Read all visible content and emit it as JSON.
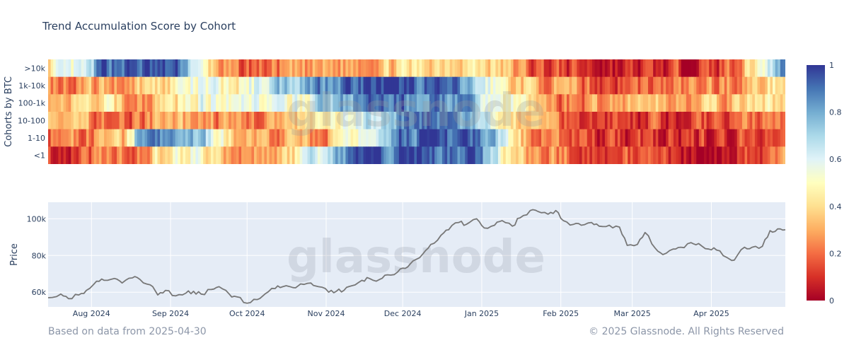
{
  "chart_data": [
    {
      "type": "heatmap",
      "title": "Trend Accumulation Score by Cohort",
      "ylabel": "Cohorts by BTC",
      "rows": [
        ">10k",
        "1k-10k",
        "100-1k",
        "10-100",
        "1-10",
        "<1"
      ],
      "x_range": [
        "2024-07-15",
        "2025-04-30"
      ],
      "colorscale": [
        "#a50026",
        "#d73027",
        "#f46d43",
        "#fdae61",
        "#fee090",
        "#ffffbf",
        "#e0f3f8",
        "#abd9e9",
        "#74add1",
        "#4575b4",
        "#313695"
      ],
      "colorbar": {
        "min": 0,
        "max": 1,
        "ticks": [
          "1",
          "0.8",
          "0.6",
          "0.4",
          "0.2",
          "0"
        ]
      },
      "row_trends": [
        [
          [
            0,
            0.45
          ],
          [
            0.05,
            0.55
          ],
          [
            0.07,
            0.95
          ],
          [
            0.18,
            0.9
          ],
          [
            0.2,
            0.5
          ],
          [
            0.25,
            0.15
          ],
          [
            0.45,
            0.35
          ],
          [
            0.55,
            0.45
          ],
          [
            0.6,
            0.4
          ],
          [
            0.66,
            0.15
          ],
          [
            0.78,
            0.05
          ],
          [
            0.9,
            0.1
          ],
          [
            0.94,
            0.3
          ],
          [
            0.96,
            0.5
          ],
          [
            0.985,
            0.7
          ],
          [
            1,
            0.95
          ]
        ],
        [
          [
            0,
            0.25
          ],
          [
            0.1,
            0.3
          ],
          [
            0.2,
            0.55
          ],
          [
            0.25,
            0.45
          ],
          [
            0.3,
            0.7
          ],
          [
            0.34,
            0.8
          ],
          [
            0.4,
            0.95
          ],
          [
            0.5,
            0.95
          ],
          [
            0.55,
            0.85
          ],
          [
            0.6,
            0.55
          ],
          [
            0.64,
            0.35
          ],
          [
            0.75,
            0.15
          ],
          [
            0.85,
            0.2
          ],
          [
            0.95,
            0.3
          ],
          [
            1,
            0.5
          ]
        ],
        [
          [
            0,
            0.3
          ],
          [
            0.08,
            0.4
          ],
          [
            0.12,
            0.25
          ],
          [
            0.2,
            0.55
          ],
          [
            0.27,
            0.6
          ],
          [
            0.32,
            0.45
          ],
          [
            0.38,
            0.75
          ],
          [
            0.45,
            0.9
          ],
          [
            0.55,
            0.85
          ],
          [
            0.6,
            0.6
          ],
          [
            0.65,
            0.4
          ],
          [
            0.7,
            0.2
          ],
          [
            0.8,
            0.35
          ],
          [
            0.9,
            0.3
          ],
          [
            1,
            0.45
          ]
        ],
        [
          [
            0,
            0.3
          ],
          [
            0.1,
            0.2
          ],
          [
            0.2,
            0.3
          ],
          [
            0.26,
            0.2
          ],
          [
            0.35,
            0.35
          ],
          [
            0.4,
            0.5
          ],
          [
            0.45,
            0.7
          ],
          [
            0.5,
            0.95
          ],
          [
            0.55,
            0.85
          ],
          [
            0.6,
            0.55
          ],
          [
            0.65,
            0.35
          ],
          [
            0.72,
            0.15
          ],
          [
            0.85,
            0.1
          ],
          [
            1,
            0.25
          ]
        ],
        [
          [
            0,
            0.2
          ],
          [
            0.1,
            0.3
          ],
          [
            0.12,
            0.85
          ],
          [
            0.2,
            0.75
          ],
          [
            0.25,
            0.35
          ],
          [
            0.3,
            0.25
          ],
          [
            0.38,
            0.3
          ],
          [
            0.43,
            0.55
          ],
          [
            0.47,
            0.95
          ],
          [
            0.58,
            0.9
          ],
          [
            0.62,
            0.55
          ],
          [
            0.65,
            0.25
          ],
          [
            0.75,
            0.1
          ],
          [
            0.9,
            0.1
          ],
          [
            1,
            0.2
          ]
        ],
        [
          [
            0,
            0.1
          ],
          [
            0.12,
            0.25
          ],
          [
            0.15,
            0.45
          ],
          [
            0.2,
            0.55
          ],
          [
            0.26,
            0.25
          ],
          [
            0.33,
            0.4
          ],
          [
            0.38,
            0.75
          ],
          [
            0.42,
            0.95
          ],
          [
            0.58,
            0.9
          ],
          [
            0.6,
            0.65
          ],
          [
            0.64,
            0.3
          ],
          [
            0.75,
            0.15
          ],
          [
            0.9,
            0.05
          ],
          [
            1,
            0.2
          ]
        ]
      ]
    },
    {
      "type": "line",
      "ylabel": "Price",
      "x_range": [
        "2024-07-15",
        "2025-04-30"
      ],
      "x_ticks": [
        {
          "label": "Aug 2024",
          "date": "2024-08-01"
        },
        {
          "label": "Sep 2024",
          "date": "2024-09-01"
        },
        {
          "label": "Oct 2024",
          "date": "2024-10-01"
        },
        {
          "label": "Nov 2024",
          "date": "2024-11-01"
        },
        {
          "label": "Dec 2024",
          "date": "2024-12-01"
        },
        {
          "label": "Jan 2025",
          "date": "2025-01-01"
        },
        {
          "label": "Feb 2025",
          "date": "2025-02-01"
        },
        {
          "label": "Mar 2025",
          "date": "2025-03-01"
        },
        {
          "label": "Apr 2025",
          "date": "2025-04-01"
        }
      ],
      "ylim": [
        52000,
        109000
      ],
      "y_ticks": [
        {
          "label": "100k",
          "value": 100000
        },
        {
          "label": "80k",
          "value": 80000
        },
        {
          "label": "60k",
          "value": 60000
        }
      ],
      "series": [
        {
          "name": "Price",
          "values": [
            [
              "2024-07-15",
              57000
            ],
            [
              "2024-07-20",
              59000
            ],
            [
              "2024-07-23",
              56500
            ],
            [
              "2024-07-27",
              58500
            ],
            [
              "2024-07-30",
              61000
            ],
            [
              "2024-08-03",
              66000
            ],
            [
              "2024-08-06",
              66500
            ],
            [
              "2024-08-10",
              67500
            ],
            [
              "2024-08-13",
              65000
            ],
            [
              "2024-08-17",
              67800
            ],
            [
              "2024-08-20",
              67000
            ],
            [
              "2024-08-24",
              64000
            ],
            [
              "2024-08-27",
              58500
            ],
            [
              "2024-08-30",
              61000
            ],
            [
              "2024-09-03",
              58000
            ],
            [
              "2024-09-07",
              59500
            ],
            [
              "2024-09-10",
              60500
            ],
            [
              "2024-09-13",
              59000
            ],
            [
              "2024-09-17",
              61500
            ],
            [
              "2024-09-20",
              63000
            ],
            [
              "2024-09-24",
              59000
            ],
            [
              "2024-09-27",
              57500
            ],
            [
              "2024-10-01",
              54000
            ],
            [
              "2024-10-05",
              56000
            ],
            [
              "2024-10-08",
              59000
            ],
            [
              "2024-10-12",
              62000
            ],
            [
              "2024-10-15",
              63000
            ],
            [
              "2024-10-19",
              62500
            ],
            [
              "2024-10-22",
              64500
            ],
            [
              "2024-10-26",
              65000
            ],
            [
              "2024-10-29",
              63000
            ],
            [
              "2024-11-02",
              60000
            ],
            [
              "2024-11-05",
              60500
            ],
            [
              "2024-11-08",
              61000
            ],
            [
              "2024-11-11",
              63500
            ],
            [
              "2024-11-15",
              66500
            ],
            [
              "2024-11-18",
              67500
            ],
            [
              "2024-11-22",
              67000
            ],
            [
              "2024-11-25",
              69500
            ],
            [
              "2024-11-29",
              71000
            ],
            [
              "2024-12-02",
              73000
            ],
            [
              "2024-12-05",
              77000
            ],
            [
              "2024-12-09",
              81000
            ],
            [
              "2024-12-12",
              86000
            ],
            [
              "2024-12-16",
              91000
            ],
            [
              "2024-12-19",
              94000
            ],
            [
              "2024-12-23",
              98000
            ],
            [
              "2024-12-26",
              97000
            ],
            [
              "2024-12-30",
              100000
            ],
            [
              "2025-01-02",
              95000
            ],
            [
              "2025-01-06",
              96500
            ],
            [
              "2025-01-09",
              99000
            ],
            [
              "2025-01-13",
              96000
            ],
            [
              "2025-01-16",
              100500
            ],
            [
              "2025-01-20",
              104500
            ],
            [
              "2025-01-23",
              104000
            ],
            [
              "2025-01-27",
              102500
            ],
            [
              "2025-01-30",
              104500
            ],
            [
              "2025-02-02",
              99000
            ],
            [
              "2025-02-06",
              97000
            ],
            [
              "2025-02-09",
              96500
            ],
            [
              "2025-02-13",
              98000
            ],
            [
              "2025-02-16",
              96000
            ],
            [
              "2025-02-20",
              96500
            ],
            [
              "2025-02-24",
              95500
            ],
            [
              "2025-02-27",
              85500
            ],
            [
              "2025-03-03",
              86000
            ],
            [
              "2025-03-06",
              92500
            ],
            [
              "2025-03-10",
              84000
            ],
            [
              "2025-03-13",
              80500
            ],
            [
              "2025-03-17",
              83500
            ],
            [
              "2025-03-20",
              84500
            ],
            [
              "2025-03-24",
              87000
            ],
            [
              "2025-03-27",
              86500
            ],
            [
              "2025-03-31",
              83500
            ],
            [
              "2025-04-03",
              83000
            ],
            [
              "2025-04-07",
              79000
            ],
            [
              "2025-04-10",
              77500
            ],
            [
              "2025-04-14",
              84500
            ],
            [
              "2025-04-17",
              84500
            ],
            [
              "2025-04-21",
              85000
            ],
            [
              "2025-04-24",
              93500
            ],
            [
              "2025-04-27",
              94500
            ],
            [
              "2025-04-30",
              94000
            ]
          ]
        }
      ]
    }
  ],
  "watermark": "glassnode",
  "footer": {
    "source": "Based on data from 2025-04-30",
    "copyright": "© 2025 Glassnode. All Rights Reserved"
  }
}
